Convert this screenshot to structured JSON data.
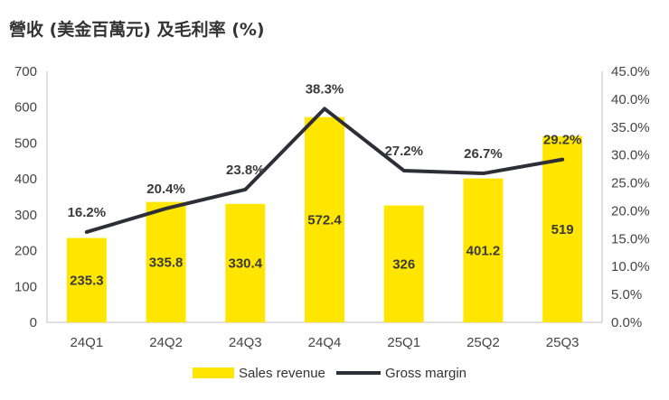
{
  "chart_data": {
    "type": "bar",
    "title": "營收 (美金百萬元) 及毛利率 (%)",
    "categories": [
      "24Q1",
      "24Q2",
      "24Q3",
      "24Q4",
      "25Q1",
      "25Q2",
      "25Q3"
    ],
    "series": [
      {
        "name": "Sales revenue",
        "type": "bar",
        "axis": "left",
        "values": [
          235.3,
          335.8,
          330.4,
          572.4,
          326,
          401.2,
          519
        ],
        "labels": [
          "235.3",
          "335.8",
          "330.4",
          "572.4",
          "326",
          "401.2",
          "519"
        ]
      },
      {
        "name": "Gross margin",
        "type": "line",
        "axis": "right",
        "values": [
          16.2,
          20.4,
          23.8,
          38.3,
          27.2,
          26.7,
          29.2
        ],
        "labels": [
          "16.2%",
          "20.4%",
          "23.8%",
          "38.3%",
          "27.2%",
          "26.7%",
          "29.2%"
        ]
      }
    ],
    "y_left": {
      "min": 0,
      "max": 700,
      "ticks": [
        "0",
        "100",
        "200",
        "300",
        "400",
        "500",
        "600",
        "700"
      ]
    },
    "y_right": {
      "min": 0,
      "max": 45,
      "ticks": [
        "0.0%",
        "5.0%",
        "10.0%",
        "15.0%",
        "20.0%",
        "25.0%",
        "30.0%",
        "35.0%",
        "40.0%",
        "45.0%"
      ]
    },
    "legend": {
      "position": "bottom",
      "items": [
        "Sales revenue",
        "Gross margin"
      ]
    },
    "colors": {
      "bar": "#FFE600",
      "line": "#2E2E38"
    },
    "grid": false
  }
}
